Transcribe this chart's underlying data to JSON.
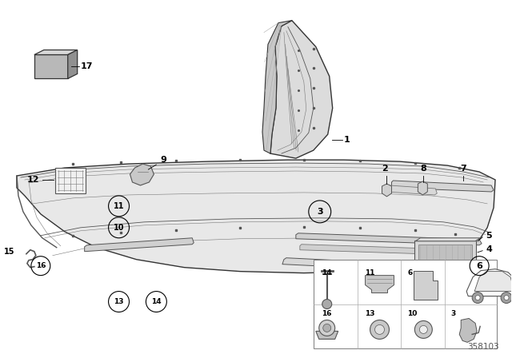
{
  "background_color": "#ffffff",
  "diagram_number": "358103",
  "fig_width": 6.4,
  "fig_height": 4.48,
  "dpi": 100
}
